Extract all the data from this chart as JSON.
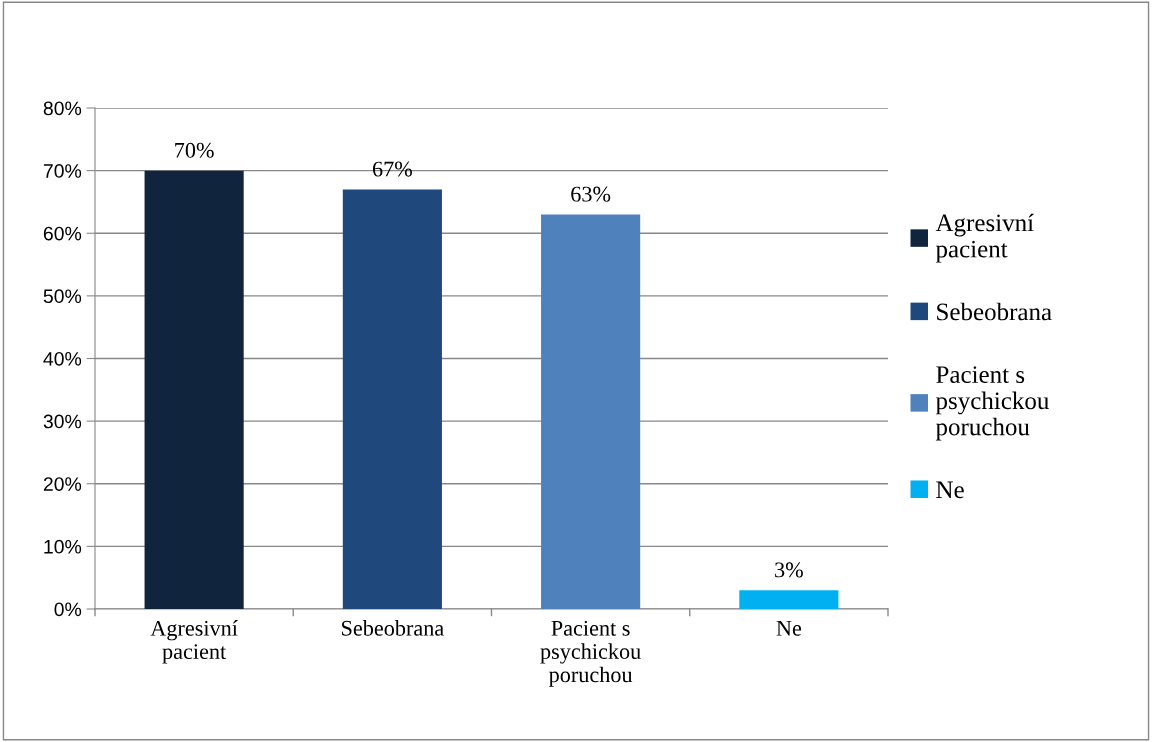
{
  "chart_data": {
    "type": "bar",
    "categories": [
      "Agresivní\npacient",
      "Sebeobrana",
      "Pacient s\npsychickou\nporuchou",
      "Ne"
    ],
    "series": [
      {
        "name": "Agresivní\npacient",
        "color": "#10243e",
        "values": [
          70,
          null,
          null,
          null
        ],
        "value_labels": [
          "70%",
          null,
          null,
          null
        ]
      },
      {
        "name": "Sebeobrana",
        "color": "#1f497d",
        "values": [
          null,
          67,
          null,
          null
        ],
        "value_labels": [
          null,
          "67%",
          null,
          null
        ]
      },
      {
        "name": "Pacient s\npsychickou\nporuchou",
        "color": "#4f81bd",
        "values": [
          null,
          null,
          63,
          null
        ],
        "value_labels": [
          null,
          null,
          "63%",
          null
        ]
      },
      {
        "name": "Ne",
        "color": "#00b0f0",
        "values": [
          null,
          null,
          null,
          3
        ],
        "value_labels": [
          null,
          null,
          null,
          "3%"
        ]
      }
    ],
    "ylim": [
      0,
      80
    ],
    "yticks": [
      {
        "value": 0,
        "label": "0%"
      },
      {
        "value": 10,
        "label": "10%"
      },
      {
        "value": 20,
        "label": "20%"
      },
      {
        "value": 30,
        "label": "30%"
      },
      {
        "value": 40,
        "label": "40%"
      },
      {
        "value": 50,
        "label": "50%"
      },
      {
        "value": 60,
        "label": "60%"
      },
      {
        "value": 70,
        "label": "70%"
      },
      {
        "value": 80,
        "label": "80%"
      }
    ],
    "grid": "y",
    "legend": "right"
  }
}
